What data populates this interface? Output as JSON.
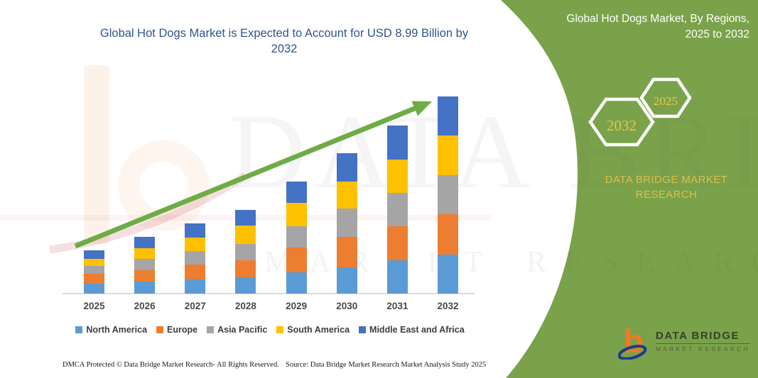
{
  "header": {
    "title_line1": "Global Hot Dogs Market is Expected to Account for USD 8.99 Billion by",
    "title_line2": "2032"
  },
  "panel": {
    "title_line1": "Global Hot Dogs Market, By Regions,",
    "title_line2": "2025 to 2032",
    "hexagons": [
      {
        "label": "2032"
      },
      {
        "label": "2025"
      }
    ],
    "brand_text_line1": "DATA BRIDGE MARKET",
    "brand_text_line2": "RESEARCH",
    "logo": {
      "letter": "b",
      "name_line": "DATA BRIDGE",
      "sub_line": "MARKET RESEARCH"
    },
    "colors": {
      "background": "#7AA24A",
      "accent_gold": "#DDBE4E",
      "hexagon_border": "#FFFFFF"
    }
  },
  "watermark": {
    "line1": "DATA BRIDGE",
    "line2": "MARKET RESEARCH"
  },
  "footer": {
    "left": "DMCA Protected © Data Bridge Market Research-  All Rights Reserved.",
    "right": "Source: Data Bridge Market Research  Market Analysis Study 2025"
  },
  "chart_data": {
    "type": "bar",
    "stacked": true,
    "title": "Global Hot Dogs Market is Expected to Account for USD 8.99 Billion by 2032",
    "unit": "USD Billion",
    "categories": [
      "2025",
      "2026",
      "2027",
      "2028",
      "2029",
      "2030",
      "2031",
      "2032"
    ],
    "series": [
      {
        "name": "North America",
        "color": "#5B9BD5",
        "values": [
          0.45,
          0.55,
          0.66,
          0.75,
          0.97,
          1.19,
          1.51,
          1.78
        ]
      },
      {
        "name": "Europe",
        "color": "#ED7D31",
        "values": [
          0.44,
          0.53,
          0.65,
          0.78,
          1.13,
          1.4,
          1.56,
          1.84
        ]
      },
      {
        "name": "Asia Pacific",
        "color": "#A5A5A5",
        "values": [
          0.37,
          0.5,
          0.63,
          0.73,
          0.97,
          1.29,
          1.51,
          1.78
        ]
      },
      {
        "name": "South America",
        "color": "#FFC000",
        "values": [
          0.33,
          0.5,
          0.63,
          0.84,
          1.08,
          1.24,
          1.54,
          1.8
        ]
      },
      {
        "name": "Middle East and Africa",
        "color": "#4472C4",
        "values": [
          0.38,
          0.51,
          0.63,
          0.72,
          0.95,
          1.27,
          1.53,
          1.79
        ]
      }
    ],
    "totals": [
      1.97,
      2.59,
      3.2,
      3.82,
      5.1,
      6.39,
      7.65,
      8.99
    ],
    "ylim": [
      0,
      9.2
    ],
    "grid": false,
    "legend_position": "bottom",
    "annotations": [
      "upward trend arrow from 2025 to top of 2032 bar"
    ],
    "trend_arrow_color": "#6EAC45"
  }
}
